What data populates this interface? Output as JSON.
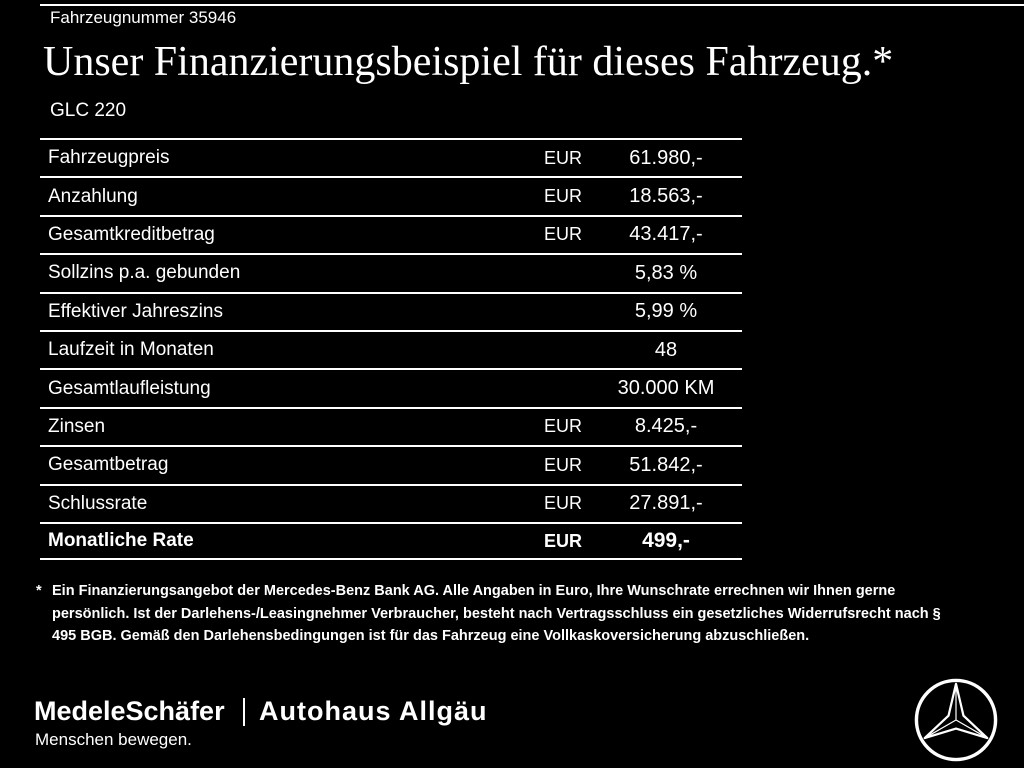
{
  "page": {
    "background": "#000000",
    "text_color": "#ffffff",
    "line_color": "#ffffff"
  },
  "header": {
    "vehicle_number": "Fahrzeugnummer 35946",
    "title": "Unser Finanzierungsbeispiel für dieses Fahrzeug.*",
    "model": "GLC 220"
  },
  "finance_table": {
    "rows": [
      {
        "label": "Fahrzeugpreis",
        "currency": "EUR",
        "value": "61.980,-",
        "emphasis": false
      },
      {
        "label": "Anzahlung",
        "currency": "EUR",
        "value": "18.563,-",
        "emphasis": false
      },
      {
        "label": "Gesamtkreditbetrag",
        "currency": "EUR",
        "value": "43.417,-",
        "emphasis": false
      },
      {
        "label": "Sollzins p.a. gebunden",
        "currency": "",
        "value": "5,83 %",
        "emphasis": false
      },
      {
        "label": "Effektiver Jahreszins",
        "currency": "",
        "value": "5,99 %",
        "emphasis": false
      },
      {
        "label": "Laufzeit in Monaten",
        "currency": "",
        "value": "48",
        "emphasis": false
      },
      {
        "label": "Gesamtlaufleistung",
        "currency": "",
        "value": "30.000 KM",
        "emphasis": false
      },
      {
        "label": "Zinsen",
        "currency": "EUR",
        "value": "8.425,-",
        "emphasis": false
      },
      {
        "label": "Gesamtbetrag",
        "currency": "EUR",
        "value": "51.842,-",
        "emphasis": false
      },
      {
        "label": "Schlussrate",
        "currency": "EUR",
        "value": "27.891,-",
        "emphasis": false
      },
      {
        "label": "Monatliche Rate",
        "currency": "EUR",
        "value": "499,-",
        "emphasis": true
      }
    ]
  },
  "footnote": {
    "marker": "*",
    "text": "Ein Finanzierungsangebot der Mercedes-Benz Bank AG. Alle Angaben in Euro, Ihre Wunschrate errechnen wir Ihnen gerne persönlich. Ist der Darlehens-/Leasingnehmer Verbraucher, besteht nach Vertragsschluss ein gesetzliches Widerrufsrecht nach § 495 BGB. Gemäß den Darlehensbedingungen ist für das Fahrzeug eine Vollkaskoversicherung abzuschließen."
  },
  "footer": {
    "dealer_primary": "MedeleSchäfer",
    "dealer_tagline": "Menschen bewegen.",
    "dealer_secondary": "Autohaus Allgäu",
    "brand_icon": "mercedes-benz-star-icon"
  }
}
